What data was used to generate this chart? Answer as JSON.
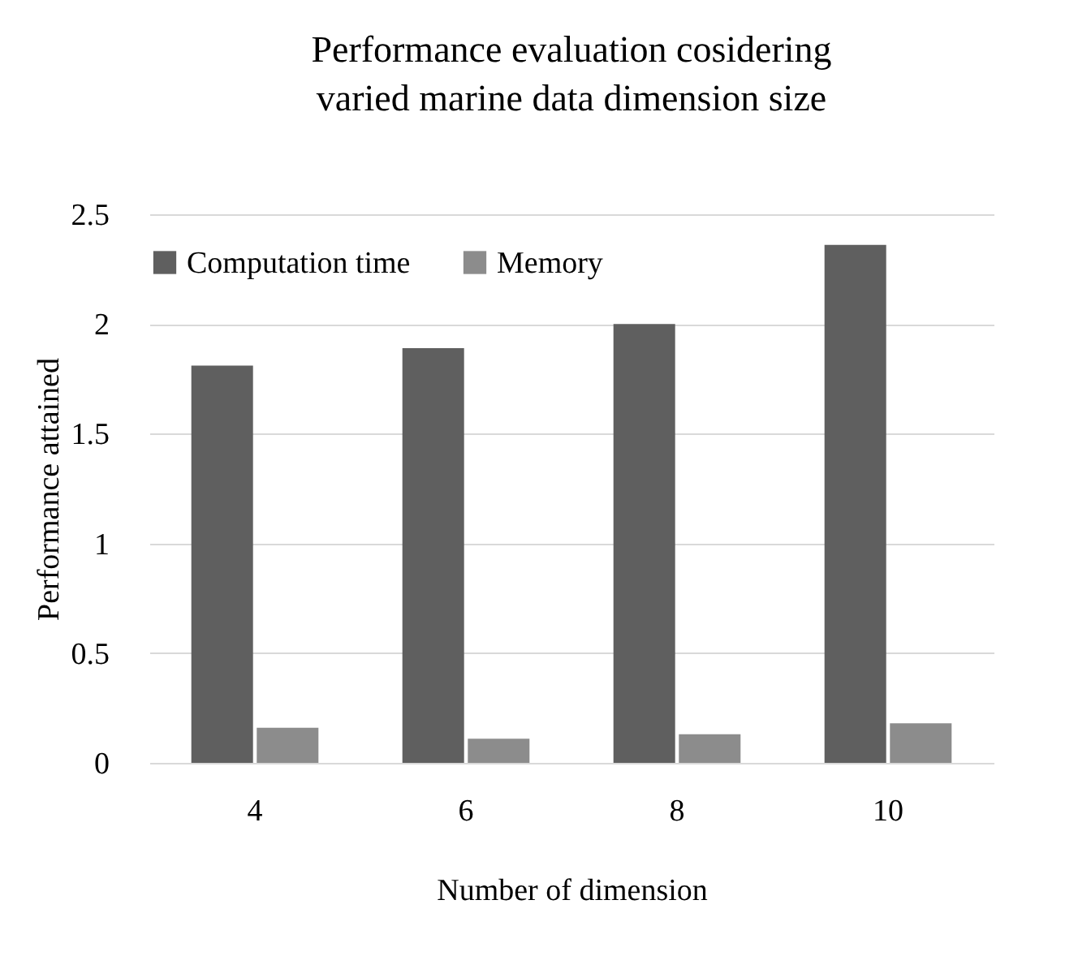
{
  "chart_data": {
    "type": "bar",
    "title": "Performance evaluation cosidering varied marine data dimension size",
    "xlabel": "Number of dimension",
    "ylabel": "Performance attained",
    "categories": [
      "4",
      "6",
      "8",
      "10"
    ],
    "series": [
      {
        "name": "Computation time",
        "color": "#5f5f5f",
        "values": [
          1.81,
          1.89,
          2.0,
          2.36
        ]
      },
      {
        "name": "Memory",
        "color": "#8c8c8c",
        "values": [
          0.16,
          0.11,
          0.13,
          0.18
        ]
      }
    ],
    "ylim": [
      0,
      2.5
    ],
    "yticks": [
      0,
      0.5,
      1,
      1.5,
      2,
      2.5
    ],
    "grid": "y",
    "legend": "top"
  }
}
